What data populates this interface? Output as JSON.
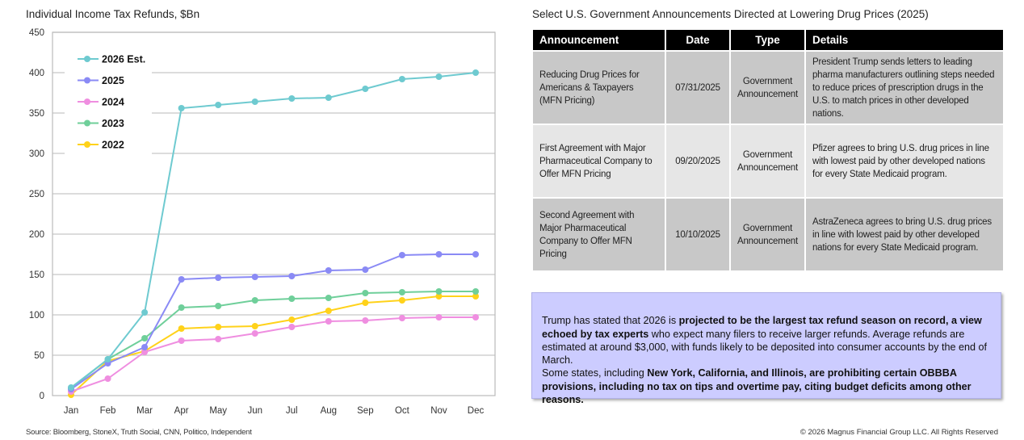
{
  "chart_data": {
    "type": "line",
    "title": "Individual Income Tax Refunds, $Bn",
    "categories": [
      "Jan",
      "Feb",
      "Mar",
      "Apr",
      "May",
      "Jun",
      "Jul",
      "Aug",
      "Sep",
      "Oct",
      "Nov",
      "Dec"
    ],
    "ylim": [
      0,
      450
    ],
    "yticks": [
      0,
      50,
      100,
      150,
      200,
      250,
      300,
      350,
      400,
      450
    ],
    "grid": true,
    "legend": "top-left",
    "series": [
      {
        "name": "2026 Est.",
        "color": "#6ecad0",
        "values": [
          10,
          45,
          103,
          356,
          360,
          364,
          368,
          369,
          380,
          392,
          395,
          400
        ]
      },
      {
        "name": "2025",
        "color": "#8a8af5",
        "values": [
          8,
          40,
          60,
          144,
          146,
          147,
          148,
          155,
          156,
          174,
          175,
          175
        ]
      },
      {
        "name": "2024",
        "color": "#ef8ee0",
        "values": [
          5,
          21,
          54,
          68,
          70,
          77,
          85,
          92,
          93,
          96,
          97,
          97
        ]
      },
      {
        "name": "2023",
        "color": "#6fcf9a",
        "values": [
          9,
          45,
          71,
          109,
          111,
          118,
          120,
          121,
          127,
          128,
          129,
          129
        ]
      },
      {
        "name": "2022",
        "color": "#ffd21a",
        "values": [
          1,
          43,
          55,
          83,
          85,
          86,
          94,
          105,
          115,
          118,
          123,
          123
        ]
      }
    ]
  },
  "table": {
    "title": "Select U.S. Government Announcements Directed at Lowering Drug Prices (2025)",
    "headers": [
      "Announcement",
      "Date",
      "Type",
      "Details"
    ],
    "rows": [
      {
        "announcement": "Reducing Drug Prices for Americans & Taxpayers (MFN Pricing)",
        "date": "07/31/2025",
        "type": "Government Announcement",
        "details": "President Trump sends letters to leading pharma manufacturers outlining steps needed to reduce prices of prescription drugs in the U.S. to match prices in other developed nations."
      },
      {
        "announcement": "First Agreement with Major Pharmaceutical Company to Offer MFN Pricing",
        "date": "09/20/2025",
        "type": "Government Announcement",
        "details": "Pfizer agrees to bring U.S. drug prices in line with lowest paid by other developed nations for every State Medicaid program."
      },
      {
        "announcement": "Second Agreement with Major Pharmaceutical Company to Offer MFN Pricing",
        "date": "10/10/2025",
        "type": "Government Announcement",
        "details": "AstraZeneca agrees to bring U.S. drug prices in line with lowest paid by other developed nations for every State Medicaid program."
      }
    ]
  },
  "callout": {
    "segments": [
      {
        "text": "Trump has stated that 2026 is ",
        "bold": false
      },
      {
        "text": "projected to be the largest tax refund season on record, a view echoed by tax experts",
        "bold": true
      },
      {
        "text": " who expect many filers to receive larger refunds. Average refunds are estimated at around $3,000, with funds likely to be deposited into consumer accounts by the end of March.",
        "bold": false
      },
      {
        "text": "\nSome states, including ",
        "bold": false
      },
      {
        "text": "New York, California, and Illinois, are prohibiting certain OBBBA provisions, including no tax on tips and overtime pay, citing budget deficits among other reasons.",
        "bold": true
      }
    ]
  },
  "footer": {
    "source": "Source: Bloomberg, StoneX, Truth Social, CNN, Politico, Independent",
    "copyright": "© 2026 Magnus Financial Group LLC. All Rights Reserved"
  }
}
